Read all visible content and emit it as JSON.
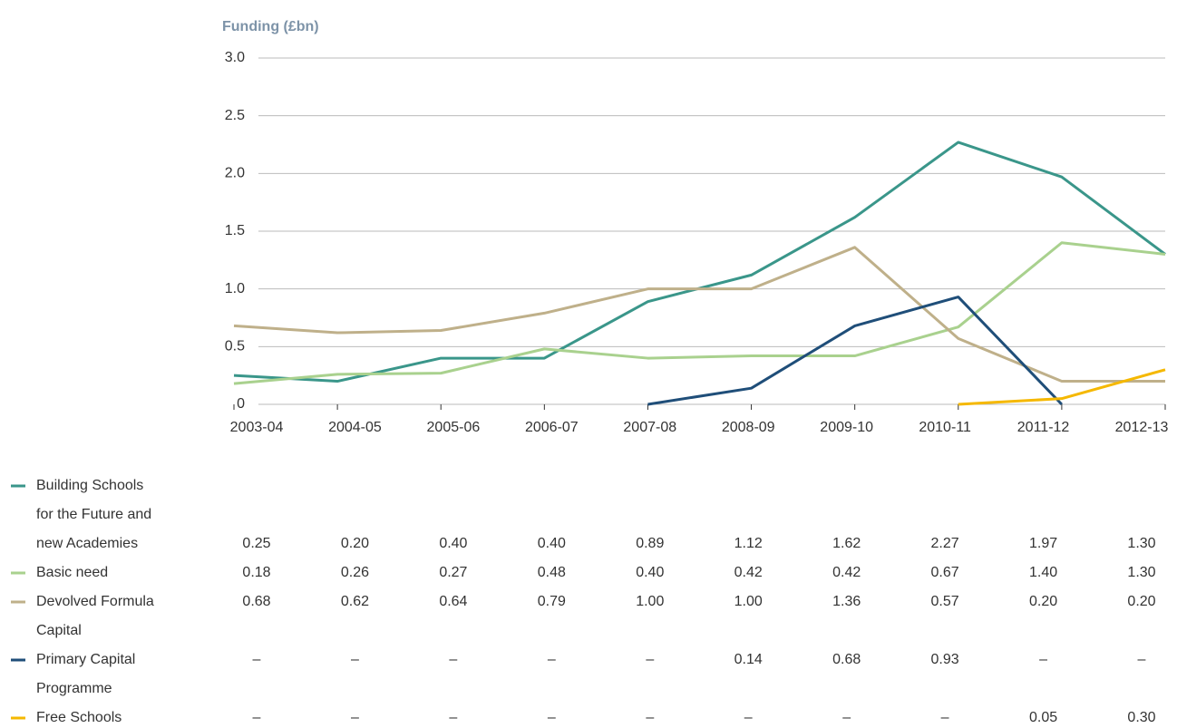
{
  "chart_data": {
    "type": "line",
    "y_axis_label": "Funding (£bn)",
    "categories": [
      "2003-04",
      "2004-05",
      "2005-06",
      "2006-07",
      "2007-08",
      "2008-09",
      "2009-10",
      "2010-11",
      "2011-12",
      "2012-13"
    ],
    "ylim": [
      0,
      3
    ],
    "yticks": [
      0,
      0.5,
      {
        "value": 1,
        "label": "1.0"
      },
      1.5,
      {
        "value": 2,
        "label": "2.0"
      },
      2.5,
      {
        "value": 3,
        "label": "3.0"
      }
    ],
    "grid": true,
    "series": [
      {
        "name": "Building Schools for the Future and new Academies",
        "color": "#3a968a",
        "values": [
          0.25,
          0.2,
          0.4,
          0.4,
          0.89,
          1.12,
          1.62,
          2.27,
          1.97,
          1.3
        ],
        "value_labels": [
          "0.25",
          "0.20",
          "0.40",
          "0.40",
          "0.89",
          "1.12",
          "1.62",
          "2.27",
          "1.97",
          "1.30"
        ]
      },
      {
        "name": "Basic need",
        "color": "#a9d18e",
        "values": [
          0.18,
          0.26,
          0.27,
          0.48,
          0.4,
          0.42,
          0.42,
          0.67,
          1.4,
          1.3
        ],
        "value_labels": [
          "0.18",
          "0.26",
          "0.27",
          "0.48",
          "0.40",
          "0.42",
          "0.42",
          "0.67",
          "1.40",
          "1.30"
        ]
      },
      {
        "name": "Devolved Formula Capital",
        "color": "#bfb08a",
        "values": [
          0.68,
          0.62,
          0.64,
          0.79,
          1.0,
          1.0,
          1.36,
          0.57,
          0.2,
          0.2
        ],
        "value_labels": [
          "0.68",
          "0.62",
          "0.64",
          "0.79",
          "1.00",
          "1.00",
          "1.36",
          "0.57",
          "0.20",
          "0.20"
        ]
      },
      {
        "name": "Primary Capital Programme",
        "color": "#1f4e79",
        "values": [
          null,
          null,
          null,
          null,
          0,
          0.14,
          0.68,
          0.93,
          0,
          null
        ],
        "value_labels": [
          "–",
          "–",
          "–",
          "–",
          "–",
          "0.14",
          "0.68",
          "0.93",
          "–",
          "–"
        ]
      },
      {
        "name": "Free Schools",
        "color": "#f5b800",
        "values": [
          null,
          null,
          null,
          null,
          null,
          null,
          null,
          0,
          0.05,
          0.3
        ],
        "value_labels": [
          "–",
          "–",
          "–",
          "–",
          "–",
          "–",
          "–",
          "–",
          "0.05",
          "0.30"
        ]
      }
    ]
  }
}
